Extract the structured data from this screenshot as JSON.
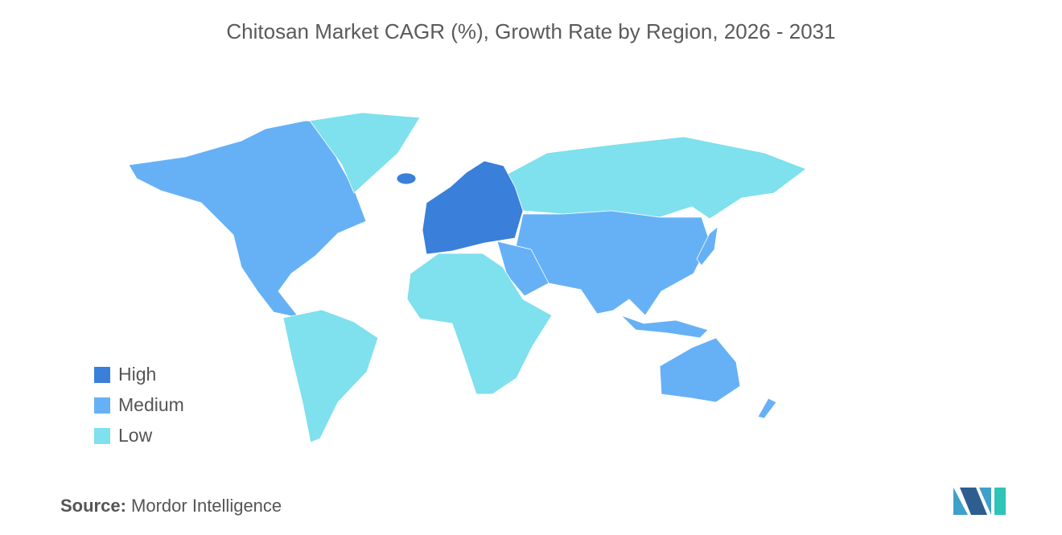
{
  "title": "Chitosan Market CAGR (%), Growth Rate by Region, 2026 - 2031",
  "legend": [
    {
      "label": "High",
      "color": "#3a7fd9"
    },
    {
      "label": "Medium",
      "color": "#66b1f6"
    },
    {
      "label": "Low",
      "color": "#7fe0ee"
    }
  ],
  "source": {
    "label": "Source:",
    "text": "Mordor Intelligence"
  }
}
